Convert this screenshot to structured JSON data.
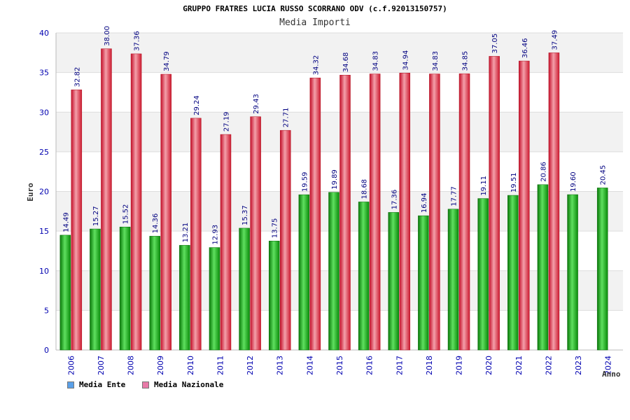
{
  "colors": {
    "ente": "#2db52d",
    "nazionale": "#e8324a",
    "axis_text": "#0000b0",
    "label_text": "#000080",
    "legend_ente": "#5aa0e8",
    "legend_nazionale": "#e87aa8"
  },
  "chart_data": {
    "type": "bar",
    "title": "GRUPPO FRATRES LUCIA RUSSO SCORRANO ODV (c.f.92013150757)",
    "subtitle": "Media Importi",
    "xlabel": "Anno",
    "ylabel": "Euro",
    "ylim": [
      0,
      40
    ],
    "yticks": [
      0,
      5,
      10,
      15,
      20,
      25,
      30,
      35,
      40
    ],
    "grid": true,
    "legend_position": "bottom-left",
    "categories": [
      "2006",
      "2007",
      "2008",
      "2009",
      "2010",
      "2011",
      "2012",
      "2013",
      "2014",
      "2015",
      "2016",
      "2017",
      "2018",
      "2019",
      "2020",
      "2021",
      "2022",
      "2023",
      "2024"
    ],
    "series": [
      {
        "name": "Media Ente",
        "values": [
          14.49,
          15.27,
          15.52,
          14.36,
          13.21,
          12.93,
          15.37,
          13.75,
          19.59,
          19.89,
          18.68,
          17.36,
          16.94,
          17.77,
          19.11,
          19.51,
          20.86,
          19.6,
          20.45
        ],
        "labels": [
          "14.49",
          "15.27",
          "15.52",
          "14.36",
          "13.21",
          "12.93",
          "15.37",
          "13.75",
          "19.59",
          "19.89",
          "18.68",
          "17.36",
          "16.94",
          "17.77",
          "19.11",
          "19.51",
          "20.86",
          "19.60",
          "20.45"
        ]
      },
      {
        "name": "Media Nazionale",
        "values": [
          32.82,
          38.0,
          37.36,
          34.79,
          29.24,
          27.19,
          29.43,
          27.71,
          34.32,
          34.68,
          34.83,
          34.94,
          34.83,
          34.85,
          37.05,
          36.46,
          37.49,
          null,
          null
        ],
        "labels": [
          "32.82",
          "38.00",
          "37.36",
          "34.79",
          "29.24",
          "27.19",
          "29.43",
          "27.71",
          "34.32",
          "34.68",
          "34.83",
          "34.94",
          "34.83",
          "34.85",
          "37.05",
          "36.46",
          "37.49",
          null,
          null
        ]
      }
    ]
  }
}
